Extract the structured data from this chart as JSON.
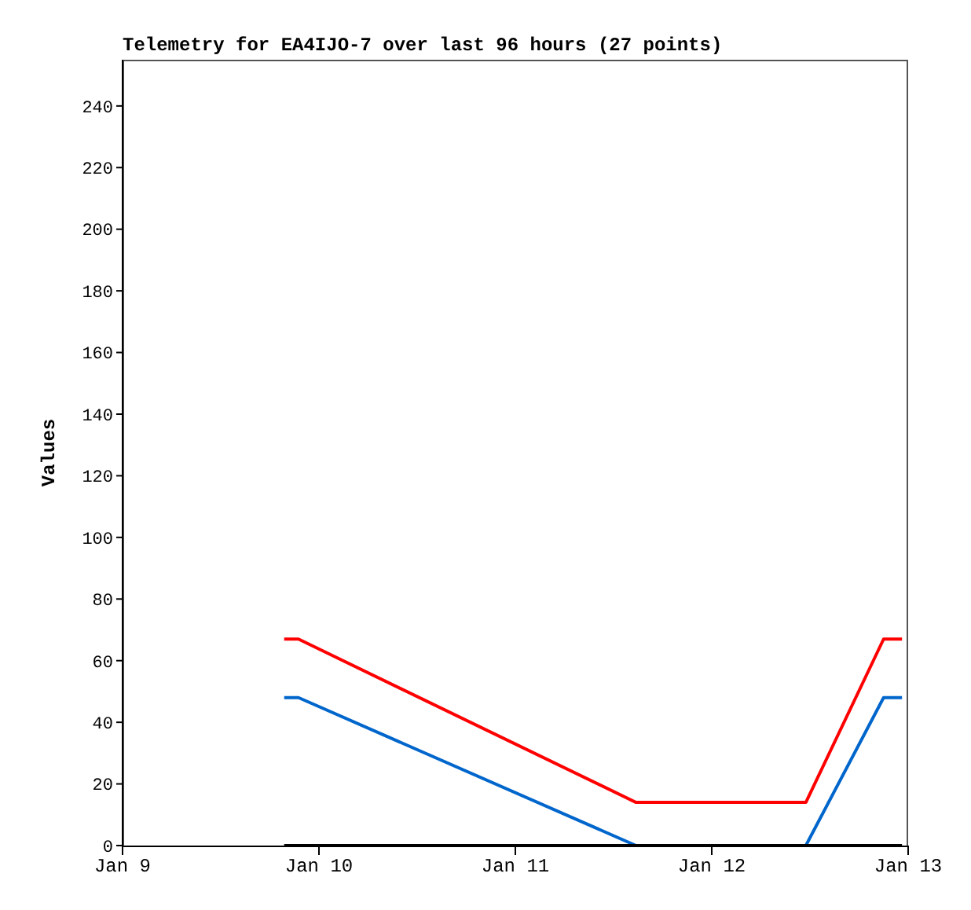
{
  "chart_data": {
    "type": "line",
    "title": "Telemetry for EA4IJO-7 over last 96 hours (27 points)",
    "ylabel": "Values",
    "x": [
      "--01-09T19:45",
      "--01-09T21:30",
      "--01-11T14:45",
      "--01-12T11:30",
      "--01-12T21:00",
      "--01-12T23:15"
    ],
    "series": [
      {
        "color": "#ff0000",
        "values": [
          67,
          67,
          14,
          14,
          67,
          67
        ]
      },
      {
        "color": "#0066cc",
        "values": [
          48,
          48,
          0,
          0,
          48,
          48
        ]
      },
      {
        "color": "#000000",
        "values": [
          0,
          0,
          0,
          0,
          0,
          0
        ]
      }
    ],
    "xlim": [
      "--01-09",
      "--01-13"
    ],
    "xticks": [
      {
        "value": "--01-09",
        "label": "Jan 9"
      },
      {
        "value": "--01-10",
        "label": "Jan 10"
      },
      {
        "value": "--01-11",
        "label": "Jan 11"
      },
      {
        "value": "--01-12",
        "label": "Jan 12"
      },
      {
        "value": "--01-13",
        "label": "Jan 13"
      }
    ],
    "ylim": [
      0,
      255
    ],
    "yticks": [
      0,
      20,
      40,
      60,
      80,
      100,
      120,
      140,
      160,
      180,
      200,
      220,
      240
    ],
    "grid": false,
    "marker": "none",
    "line_style": "solid"
  }
}
